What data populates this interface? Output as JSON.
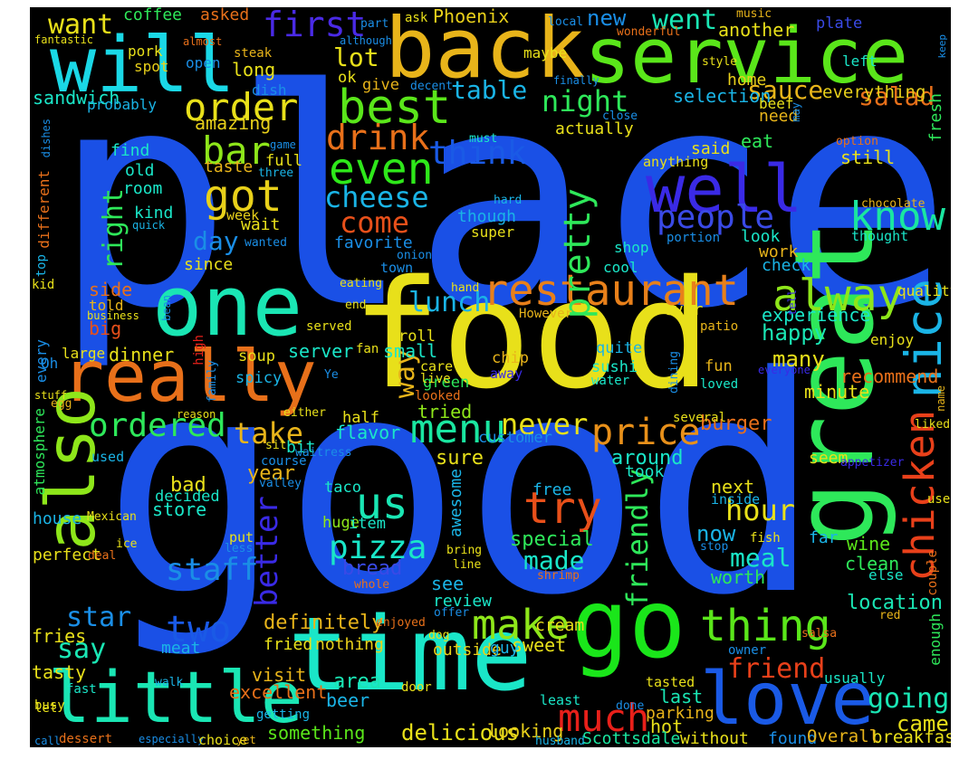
{
  "canvas": {
    "background": "#000000",
    "page_background": "#ffffff"
  },
  "words": [
    {
      "text": "place",
      "color": "#1a50e6"
    },
    {
      "text": "good",
      "color": "#1a50e6"
    },
    {
      "text": "food",
      "color": "#e8e01a"
    },
    {
      "text": "great",
      "color": "#2ee85a"
    },
    {
      "text": "back",
      "color": "#e8b41a"
    },
    {
      "text": "service",
      "color": "#5ae61a"
    },
    {
      "text": "will",
      "color": "#1ad8e6"
    },
    {
      "text": "one",
      "color": "#1ae6b4"
    },
    {
      "text": "really",
      "color": "#e8701a"
    },
    {
      "text": "time",
      "color": "#1ae6c8"
    },
    {
      "text": "go",
      "color": "#1ae61a"
    },
    {
      "text": "also",
      "color": "#8ee61a"
    },
    {
      "text": "little",
      "color": "#1ae6b4"
    },
    {
      "text": "love",
      "color": "#1a5ae6"
    },
    {
      "text": "well",
      "color": "#3a2ae6"
    },
    {
      "text": "nice",
      "color": "#1ab4e6"
    },
    {
      "text": "chicken",
      "color": "#e8401a"
    },
    {
      "text": "restaurant",
      "color": "#e8801a"
    },
    {
      "text": "alway",
      "color": "#8ee61a"
    },
    {
      "text": "best",
      "color": "#5ae61a"
    },
    {
      "text": "even",
      "color": "#2ee81a"
    },
    {
      "text": "got",
      "color": "#e8d01a"
    },
    {
      "text": "order",
      "color": "#e8e01a"
    },
    {
      "text": "bar",
      "color": "#8ee61a"
    },
    {
      "text": "drink",
      "color": "#e8701a"
    },
    {
      "text": "first",
      "color": "#4a2ae6"
    },
    {
      "text": "want",
      "color": "#e8e01a"
    },
    {
      "text": "ordered",
      "color": "#2ee85a"
    },
    {
      "text": "menu",
      "color": "#1ae6a0"
    },
    {
      "text": "make",
      "color": "#8ee61a"
    },
    {
      "text": "thing",
      "color": "#5ae61a"
    },
    {
      "text": "try",
      "color": "#e8501a"
    },
    {
      "text": "us",
      "color": "#1ae6b4"
    },
    {
      "text": "pizza",
      "color": "#1ae6c8"
    },
    {
      "text": "pretty",
      "color": "#2ee85a"
    },
    {
      "text": "know",
      "color": "#1ae6a0"
    },
    {
      "text": "people",
      "color": "#3a4ae6"
    },
    {
      "text": "cheese",
      "color": "#1ab4e6"
    },
    {
      "text": "come",
      "color": "#e8501a"
    },
    {
      "text": "think",
      "color": "#1a5ae6"
    },
    {
      "text": "price",
      "color": "#e8901a"
    },
    {
      "text": "never",
      "color": "#e8e01a"
    },
    {
      "text": "much",
      "color": "#e8201a"
    },
    {
      "text": "friend",
      "color": "#e8401a"
    },
    {
      "text": "going",
      "color": "#1ae6b4"
    },
    {
      "text": "two",
      "color": "#1a5ae6"
    },
    {
      "text": "staff",
      "color": "#1a8ee6"
    },
    {
      "text": "better",
      "color": "#3a2ae6"
    },
    {
      "text": "friendly",
      "color": "#2ee85a"
    },
    {
      "text": "hour",
      "color": "#e8e01a"
    },
    {
      "text": "meal",
      "color": "#1ae6c8"
    },
    {
      "text": "made",
      "color": "#1ae6c8"
    },
    {
      "text": "star",
      "color": "#1a8ee6"
    },
    {
      "text": "say",
      "color": "#1ae6b4"
    },
    {
      "text": "take",
      "color": "#e8b41a"
    },
    {
      "text": "way",
      "color": "#e8b41a"
    },
    {
      "text": "lunch",
      "color": "#1ab4e6"
    },
    {
      "text": "right",
      "color": "#2ee85a"
    },
    {
      "text": "day",
      "color": "#1a8ee6"
    },
    {
      "text": "salad",
      "color": "#e8701a"
    },
    {
      "text": "table",
      "color": "#1ab4e6"
    },
    {
      "text": "night",
      "color": "#2ee85a"
    },
    {
      "text": "sauce",
      "color": "#e8b41a"
    },
    {
      "text": "went",
      "color": "#1ae6b4"
    },
    {
      "text": "new",
      "color": "#1a8ee6"
    },
    {
      "text": "lot",
      "color": "#e8e01a"
    },
    {
      "text": "location",
      "color": "#1ae6b4"
    },
    {
      "text": "definitely",
      "color": "#e8b41a"
    },
    {
      "text": "delicious",
      "color": "#e8e01a"
    },
    {
      "text": "burger",
      "color": "#e8701a"
    },
    {
      "text": "experience",
      "color": "#1ae6c8"
    },
    {
      "text": "happy",
      "color": "#1ae6b4"
    },
    {
      "text": "everything",
      "color": "#e8d01a"
    },
    {
      "text": "selection",
      "color": "#1ab4e6"
    },
    {
      "text": "amazing",
      "color": "#e8d01a"
    },
    {
      "text": "sandwich",
      "color": "#1ae6c8"
    },
    {
      "text": "coffee",
      "color": "#2ee85a"
    },
    {
      "text": "asked",
      "color": "#e8701a"
    },
    {
      "text": "Phoenix",
      "color": "#e8d01a"
    },
    {
      "text": "another",
      "color": "#e8e01a"
    },
    {
      "text": "long",
      "color": "#e8e01a"
    },
    {
      "text": "side",
      "color": "#e8701a"
    },
    {
      "text": "big",
      "color": "#e8501a"
    },
    {
      "text": "dinner",
      "color": "#e8e01a"
    },
    {
      "text": "server",
      "color": "#1ae6c8"
    },
    {
      "text": "small",
      "color": "#1ae6c8"
    },
    {
      "text": "tried",
      "color": "#8ee61a"
    },
    {
      "text": "flavor",
      "color": "#1ae6c8"
    },
    {
      "text": "around",
      "color": "#1ae6c8"
    },
    {
      "text": "sure",
      "color": "#e8e01a"
    },
    {
      "text": "next",
      "color": "#e8e01a"
    },
    {
      "text": "now",
      "color": "#1ab4e6"
    },
    {
      "text": "worth",
      "color": "#2ee85a"
    },
    {
      "text": "wine",
      "color": "#5ae61a"
    },
    {
      "text": "clean",
      "color": "#2ee85a"
    },
    {
      "text": "came",
      "color": "#e8e01a"
    },
    {
      "text": "last",
      "color": "#1ae6b4"
    },
    {
      "text": "hot",
      "color": "#e8e01a"
    },
    {
      "text": "breakfast",
      "color": "#e8e01a"
    },
    {
      "text": "minute",
      "color": "#e8e01a"
    },
    {
      "text": "recommend",
      "color": "#e8701a"
    },
    {
      "text": "many",
      "color": "#e8e01a"
    },
    {
      "text": "year",
      "color": "#e8b41a"
    },
    {
      "text": "bad",
      "color": "#e8e01a"
    },
    {
      "text": "store",
      "color": "#1ae6c8"
    },
    {
      "text": "special",
      "color": "#2ee85a"
    },
    {
      "text": "bread",
      "color": "#3a4ae6"
    },
    {
      "text": "see",
      "color": "#1ab4e6"
    },
    {
      "text": "review",
      "color": "#1ae6c8"
    },
    {
      "text": "sweet",
      "color": "#e8e01a"
    },
    {
      "text": "area",
      "color": "#1ae6b4"
    },
    {
      "text": "beer",
      "color": "#1ab4e6"
    },
    {
      "text": "visit",
      "color": "#e8b41a"
    },
    {
      "text": "excellent",
      "color": "#e8701a"
    },
    {
      "text": "something",
      "color": "#5ae61a"
    },
    {
      "text": "looking",
      "color": "#e8d01a"
    },
    {
      "text": "parking",
      "color": "#e8b41a"
    },
    {
      "text": "without",
      "color": "#e8e01a"
    },
    {
      "text": "found",
      "color": "#1a8ee6"
    },
    {
      "text": "Overall",
      "color": "#e8b41a"
    },
    {
      "text": "Scottsdale",
      "color": "#1ae6a0"
    },
    {
      "text": "fries",
      "color": "#e8e01a"
    },
    {
      "text": "tasty",
      "color": "#e8e01a"
    },
    {
      "text": "meat",
      "color": "#1ab4e6"
    },
    {
      "text": "fried",
      "color": "#e8e01a"
    },
    {
      "text": "outside",
      "color": "#e8d01a"
    },
    {
      "text": "nothing",
      "color": "#e8d01a"
    },
    {
      "text": "guy",
      "color": "#1ab4e6"
    },
    {
      "text": "cream",
      "color": "#e8e01a"
    },
    {
      "text": "awesome",
      "color": "#1ab4e6"
    },
    {
      "text": "house",
      "color": "#1ab4e6"
    },
    {
      "text": "perfect",
      "color": "#e8e01a"
    },
    {
      "text": "decided",
      "color": "#1ae6c8"
    },
    {
      "text": "taco",
      "color": "#1ae6c8"
    },
    {
      "text": "huge",
      "color": "#8ee61a"
    },
    {
      "text": "item",
      "color": "#1ae6c8"
    },
    {
      "text": "free",
      "color": "#1ab4e6"
    },
    {
      "text": "took",
      "color": "#1ae6c8"
    },
    {
      "text": "bit",
      "color": "#1ae6c8"
    },
    {
      "text": "seem",
      "color": "#e8e01a"
    },
    {
      "text": "enough",
      "color": "#2ee85a"
    },
    {
      "text": "far",
      "color": "#1ab4e6"
    },
    {
      "text": "fresh",
      "color": "#2ee85a"
    },
    {
      "text": "quality",
      "color": "#e8e01a"
    },
    {
      "text": "enjoy",
      "color": "#e8e01a"
    },
    {
      "text": "still",
      "color": "#e8e01a"
    },
    {
      "text": "said",
      "color": "#e8e01a"
    },
    {
      "text": "eat",
      "color": "#2ee85a"
    },
    {
      "text": "work",
      "color": "#e8b41a"
    },
    {
      "text": "check",
      "color": "#1ab4e6"
    },
    {
      "text": "look",
      "color": "#1ae6c8"
    },
    {
      "text": "shop",
      "color": "#1ae6c8"
    },
    {
      "text": "cool",
      "color": "#1ae6c8"
    },
    {
      "text": "though",
      "color": "#1ab4e6"
    },
    {
      "text": "super",
      "color": "#e8e01a"
    },
    {
      "text": "favorite",
      "color": "#1a8ee6"
    },
    {
      "text": "since",
      "color": "#e8e01a"
    },
    {
      "text": "wait",
      "color": "#e8e01a"
    },
    {
      "text": "taste",
      "color": "#e8b41a"
    },
    {
      "text": "room",
      "color": "#1ae6c8"
    },
    {
      "text": "kind",
      "color": "#1ae6c8"
    },
    {
      "text": "old",
      "color": "#1ae6c8"
    },
    {
      "text": "find",
      "color": "#1ae6c8"
    },
    {
      "text": "full",
      "color": "#e8e01a"
    },
    {
      "text": "week",
      "color": "#e8d01a"
    },
    {
      "text": "actually",
      "color": "#e8e01a"
    },
    {
      "text": "home",
      "color": "#e8d01a"
    },
    {
      "text": "need",
      "color": "#e8b41a"
    },
    {
      "text": "beef",
      "color": "#e8e01a"
    },
    {
      "text": "ever",
      "color": "#e8e01a"
    },
    {
      "text": "soup",
      "color": "#e8e01a"
    },
    {
      "text": "spicy",
      "color": "#1ab4e6"
    },
    {
      "text": "roll",
      "color": "#e8e01a"
    },
    {
      "text": "green",
      "color": "#2ee85a"
    },
    {
      "text": "half",
      "color": "#e8e01a"
    },
    {
      "text": "chip",
      "color": "#e8b41a"
    },
    {
      "text": "sushi",
      "color": "#1ae6c8"
    },
    {
      "text": "fun",
      "color": "#e8b41a"
    },
    {
      "text": "quite",
      "color": "#1ab4e6"
    },
    {
      "text": "customer",
      "color": "#1a8ee6"
    },
    {
      "text": "give",
      "color": "#e8b41a"
    },
    {
      "text": "ok",
      "color": "#e8e01a"
    },
    {
      "text": "maybe",
      "color": "#e8e01a"
    },
    {
      "text": "pork",
      "color": "#e8e01a"
    },
    {
      "text": "spot",
      "color": "#e8d01a"
    },
    {
      "text": "probably",
      "color": "#1ab4e6"
    },
    {
      "text": "dish",
      "color": "#1a8ee6"
    },
    {
      "text": "open",
      "color": "#1a8ee6"
    },
    {
      "text": "steak",
      "color": "#e8b41a"
    },
    {
      "text": "different",
      "color": "#e8701a"
    },
    {
      "text": "atmosphere",
      "color": "#2ee85a"
    },
    {
      "text": "every",
      "color": "#1a8ee6"
    },
    {
      "text": "large",
      "color": "#e8e01a"
    },
    {
      "text": "Oh",
      "color": "#1a8ee6"
    },
    {
      "text": "told",
      "color": "#e8b41a"
    },
    {
      "text": "top",
      "color": "#1ab4e6"
    },
    {
      "text": "kid",
      "color": "#e8e01a"
    },
    {
      "text": "left",
      "color": "#1ae6c8"
    },
    {
      "text": "style",
      "color": "#e8e01a"
    },
    {
      "text": "plate",
      "color": "#3a4ae6"
    },
    {
      "text": "local",
      "color": "#1a8ee6"
    },
    {
      "text": "music",
      "color": "#e8b41a"
    },
    {
      "text": "option",
      "color": "#e8701a"
    },
    {
      "text": "chocolate",
      "color": "#e8b41a"
    },
    {
      "text": "thought",
      "color": "#1ae6c8"
    },
    {
      "text": "anything",
      "color": "#e8e01a"
    },
    {
      "text": "portion",
      "color": "#1a8ee6"
    },
    {
      "text": "liked",
      "color": "#e8e01a"
    },
    {
      "text": "appetizer",
      "color": "#3a2ae6"
    },
    {
      "text": "use",
      "color": "#e8e01a"
    },
    {
      "text": "couple",
      "color": "#e8701a"
    },
    {
      "text": "red",
      "color": "#e8b41a"
    },
    {
      "text": "else",
      "color": "#1ae6c8"
    },
    {
      "text": "owner",
      "color": "#1a8ee6"
    },
    {
      "text": "usually",
      "color": "#1ae6c8"
    },
    {
      "text": "salsa",
      "color": "#e8701a"
    },
    {
      "text": "inside",
      "color": "#1ab4e6"
    },
    {
      "text": "fish",
      "color": "#e8e01a"
    },
    {
      "text": "stop",
      "color": "#1a8ee6"
    },
    {
      "text": "several",
      "color": "#e8e01a"
    },
    {
      "text": "loved",
      "color": "#1ae6c8"
    },
    {
      "text": "dining",
      "color": "#1a8ee6"
    },
    {
      "text": "water",
      "color": "#1ae6c8"
    },
    {
      "text": "care",
      "color": "#e8e01a"
    },
    {
      "text": "live",
      "color": "#e8e01a"
    },
    {
      "text": "away",
      "color": "#3a2ae6"
    },
    {
      "text": "looked",
      "color": "#e8701a"
    },
    {
      "text": "either",
      "color": "#e8e01a"
    },
    {
      "text": "sit",
      "color": "#e8e01a"
    },
    {
      "text": "waitress",
      "color": "#1a8ee6"
    },
    {
      "text": "course",
      "color": "#1a8ee6"
    },
    {
      "text": "valley",
      "color": "#1a8ee6"
    },
    {
      "text": "used",
      "color": "#1ab4e6"
    },
    {
      "text": "Mexican",
      "color": "#e8e01a"
    },
    {
      "text": "ice",
      "color": "#e8e01a"
    },
    {
      "text": "deal",
      "color": "#e8701a"
    },
    {
      "text": "less",
      "color": "#1a8ee6"
    },
    {
      "text": "put",
      "color": "#e8e01a"
    },
    {
      "text": "bring",
      "color": "#e8e01a"
    },
    {
      "text": "line",
      "color": "#e8e01a"
    },
    {
      "text": "whole",
      "color": "#e8701a"
    },
    {
      "text": "shrimp",
      "color": "#e8701a"
    },
    {
      "text": "offer",
      "color": "#1a8ee6"
    },
    {
      "text": "dog",
      "color": "#e8e01a"
    },
    {
      "text": "enjoyed",
      "color": "#e8701a"
    },
    {
      "text": "walk",
      "color": "#1ab4e6"
    },
    {
      "text": "door",
      "color": "#e8e01a"
    },
    {
      "text": "least",
      "color": "#1ae6c8"
    },
    {
      "text": "done",
      "color": "#1a8ee6"
    },
    {
      "text": "tasted",
      "color": "#e8e01a"
    },
    {
      "text": "fast",
      "color": "#1ae6c8"
    },
    {
      "text": "busy",
      "color": "#e8e01a"
    },
    {
      "text": "let",
      "color": "#e8e01a"
    },
    {
      "text": "getting",
      "color": "#1ab4e6"
    },
    {
      "text": "call",
      "color": "#1a8ee6"
    },
    {
      "text": "dessert",
      "color": "#e8701a"
    },
    {
      "text": "especially",
      "color": "#1a8ee6"
    },
    {
      "text": "choice",
      "color": "#e8e01a"
    },
    {
      "text": "yet",
      "color": "#e8b41a"
    },
    {
      "text": "husband",
      "color": "#1ab4e6"
    },
    {
      "text": "high",
      "color": "#e8201a"
    },
    {
      "text": "fan",
      "color": "#e8e01a"
    },
    {
      "text": "Ye",
      "color": "#1a8ee6"
    },
    {
      "text": "family",
      "color": "#1a8ee6"
    },
    {
      "text": "reason",
      "color": "#e8e01a"
    },
    {
      "text": "stuff",
      "color": "#e8e01a"
    },
    {
      "text": "egg",
      "color": "#e8b41a"
    },
    {
      "text": "served",
      "color": "#e8e01a"
    },
    {
      "text": "However",
      "color": "#e8b41a"
    },
    {
      "text": "patio",
      "color": "#e8b41a"
    },
    {
      "text": "business",
      "color": "#e8e01a"
    },
    {
      "text": "bean",
      "color": "#1a8ee6"
    },
    {
      "text": "end",
      "color": "#e8e01a"
    },
    {
      "text": "eating",
      "color": "#e8e01a"
    },
    {
      "text": "hand",
      "color": "#e8e01a"
    },
    {
      "text": "tell",
      "color": "#3a2ae6"
    },
    {
      "text": "town",
      "color": "#1a8ee6"
    },
    {
      "text": "onion",
      "color": "#1a8ee6"
    },
    {
      "text": "wanted",
      "color": "#1a8ee6"
    },
    {
      "text": "three",
      "color": "#1ab4e6"
    },
    {
      "text": "game",
      "color": "#1a8ee6"
    },
    {
      "text": "quick",
      "color": "#1ab4e6"
    },
    {
      "text": "hard",
      "color": "#1ab4e6"
    },
    {
      "text": "must",
      "color": "#1ae6c8"
    },
    {
      "text": "close",
      "color": "#1a8ee6"
    },
    {
      "text": "may",
      "color": "#1a8ee6"
    },
    {
      "text": "finally",
      "color": "#1a8ee6"
    },
    {
      "text": "decent",
      "color": "#1a8ee6"
    },
    {
      "text": "although",
      "color": "#1a8ee6"
    },
    {
      "text": "part",
      "color": "#1a8ee6"
    },
    {
      "text": "ask",
      "color": "#e8e01a"
    },
    {
      "text": "wonderful",
      "color": "#e8701a"
    },
    {
      "text": "almost",
      "color": "#e8701a"
    },
    {
      "text": "fantastic",
      "color": "#e8e01a"
    },
    {
      "text": "dishes",
      "color": "#1a8ee6"
    },
    {
      "text": "keep",
      "color": "#1a8ee6"
    },
    {
      "text": "everyone",
      "color": "#3a2ae6"
    },
    {
      "text": "name",
      "color": "#e8b41a"
    }
  ]
}
